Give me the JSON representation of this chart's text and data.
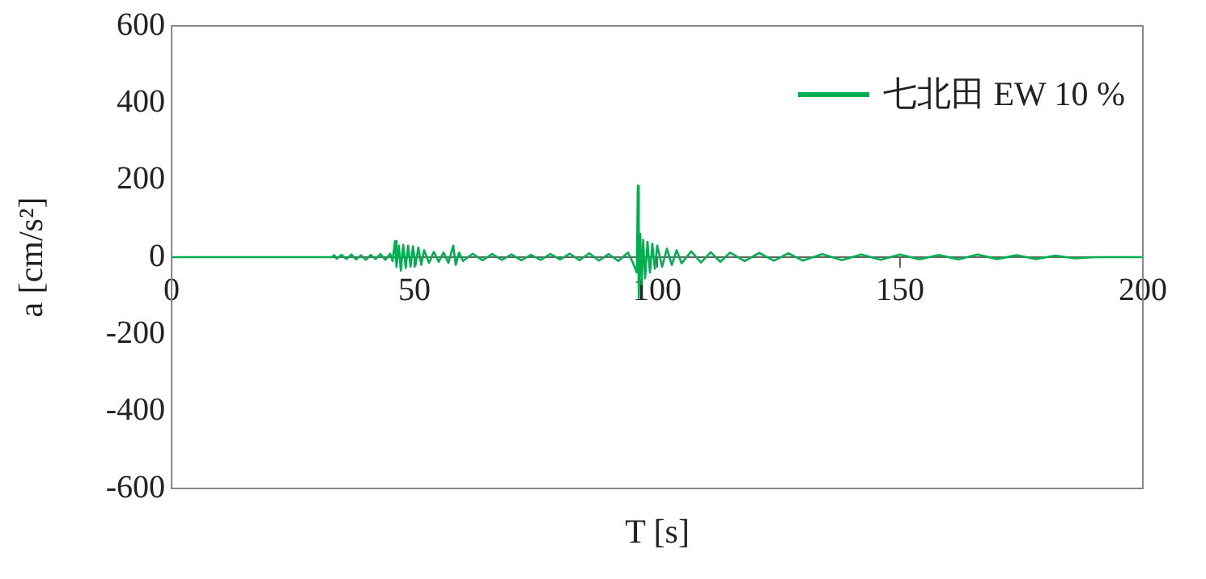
{
  "chart_data": {
    "type": "line",
    "xlabel": "T [s]",
    "ylabel": "a [cm/s²]",
    "xlim": [
      0,
      200
    ],
    "xticks": [
      0,
      50,
      100,
      150,
      200
    ],
    "ylim": [
      -600,
      600
    ],
    "yticks": [
      -600,
      -400,
      -200,
      0,
      200,
      400,
      600
    ],
    "grid": false,
    "legend": "top right",
    "marker": "none",
    "line_style": "solid",
    "series": [
      {
        "name": "七北田 EW 10 %",
        "color": "#00b050",
        "x": [
          0,
          33,
          33.5,
          34,
          35,
          36,
          37,
          38,
          39,
          40,
          41,
          42,
          43,
          44,
          45,
          45.5,
          46,
          46.3,
          46.8,
          47.2,
          47.7,
          48.2,
          48.7,
          49.2,
          49.7,
          50.2,
          50.8,
          51.4,
          52,
          53,
          54,
          55,
          56,
          57,
          58,
          58.5,
          59.2,
          60,
          62,
          64,
          66,
          68,
          70,
          72,
          74,
          76,
          78,
          80,
          82,
          84,
          86,
          88,
          90,
          92,
          94,
          95,
          95.8,
          96,
          96.2,
          96.5,
          96.8,
          97.1,
          97.5,
          98,
          98.5,
          99,
          99.5,
          100,
          101,
          102,
          103,
          104,
          105,
          107,
          109,
          111,
          113,
          115,
          118,
          121,
          124,
          127,
          130,
          134,
          138,
          142,
          146,
          150,
          154,
          158,
          162,
          166,
          170,
          174,
          178,
          182,
          186,
          190,
          200
        ],
        "values": [
          0,
          0,
          5,
          -4,
          6,
          -5,
          7,
          -6,
          5,
          -7,
          6,
          -5,
          8,
          -7,
          9,
          -10,
          42,
          -25,
          30,
          -35,
          32,
          -28,
          30,
          -25,
          28,
          -22,
          25,
          -20,
          18,
          -15,
          14,
          -12,
          12,
          -15,
          30,
          -20,
          12,
          -10,
          9,
          -8,
          8,
          -7,
          7,
          -8,
          6,
          -7,
          8,
          -6,
          9,
          -8,
          10,
          -9,
          8,
          -10,
          12,
          -15,
          -40,
          185,
          -105,
          60,
          -70,
          45,
          -55,
          40,
          -40,
          35,
          -30,
          30,
          -25,
          22,
          -20,
          18,
          -16,
          15,
          -14,
          13,
          -12,
          12,
          -10,
          11,
          -9,
          10,
          -9,
          8,
          -8,
          7,
          -7,
          7,
          -6,
          6,
          -6,
          7,
          -5,
          5,
          -5,
          4,
          -3,
          0,
          0
        ]
      }
    ]
  }
}
